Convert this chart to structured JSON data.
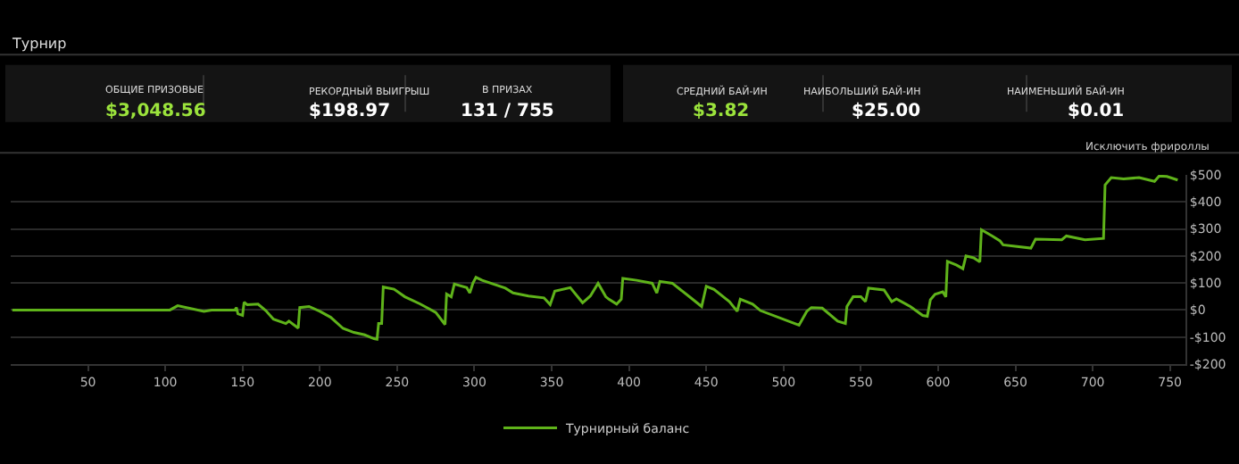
{
  "chart_data": [
    {
      "type": "other",
      "title": "Турнир",
      "annotations": [
        "ОБЩИЕ ПРИЗОВЫЕ",
        "$3,048.56",
        "РЕКОРДНЫЙ ВЫИГРЫШ",
        "$198.97",
        "В ПРИЗАХ",
        "131 / 755",
        "СРЕДНИЙ БАЙ-ИН",
        "$3.82",
        "НАИБОЛЬШИЙ БАЙ-ИН",
        "$25.00",
        "НАИМЕНЬШИЙ БАЙ-ИН",
        "$0.01",
        "Исключить фрироллы"
      ]
    },
    {
      "type": "line",
      "xlim": [
        0,
        760
      ],
      "ylim": [
        -200,
        500
      ],
      "xticks": [
        50,
        100,
        150,
        200,
        250,
        300,
        350,
        400,
        450,
        500,
        550,
        600,
        650,
        700,
        750
      ],
      "yticks": [
        {
          "value": -200,
          "label": "-$200"
        },
        {
          "value": -100,
          "label": "-$100"
        },
        {
          "value": 0,
          "label": "$0"
        },
        {
          "value": 100,
          "label": "$100"
        },
        {
          "value": 200,
          "label": "$200"
        },
        {
          "value": 300,
          "label": "$300"
        },
        {
          "value": 400,
          "label": "$400"
        },
        {
          "value": 500,
          "label": "$500"
        }
      ],
      "grid": "y",
      "legend": "bottom",
      "line_style": "solid",
      "series": [
        {
          "name": "Турнирный баланс",
          "color": "#5fb31a",
          "x": [
            1,
            103,
            108,
            125,
            130,
            145,
            146,
            147,
            150,
            151,
            153,
            160,
            165,
            170,
            178,
            180,
            186,
            187,
            193,
            200,
            207,
            215,
            222,
            229,
            235,
            237,
            238,
            240,
            241,
            248,
            255,
            265,
            275,
            281,
            282,
            285,
            287,
            295,
            297,
            299,
            301,
            305,
            320,
            325,
            335,
            345,
            349,
            352,
            362,
            370,
            375,
            380,
            385,
            387,
            392,
            395,
            396,
            405,
            415,
            418,
            420,
            428,
            440,
            447,
            450,
            455,
            465,
            470,
            472,
            480,
            485,
            510,
            515,
            518,
            525,
            535,
            540,
            541,
            545,
            550,
            553,
            555,
            565,
            570,
            573,
            582,
            590,
            593,
            595,
            598,
            603,
            605,
            606,
            612,
            616,
            618,
            623,
            627,
            628,
            635,
            640,
            642,
            660,
            663,
            680,
            683,
            695,
            707,
            708,
            712,
            720,
            730,
            740,
            743,
            748,
            755
          ],
          "values": [
            0,
            0,
            16,
            -5,
            0,
            0,
            9,
            -14,
            -20,
            29,
            20,
            22,
            -2,
            -34,
            -50,
            -41,
            -67,
            9,
            13,
            -5,
            -27,
            -68,
            -83,
            -92,
            -106,
            -108,
            -50,
            -50,
            85,
            77,
            49,
            22,
            -9,
            -54,
            59,
            49,
            96,
            83,
            63,
            99,
            121,
            110,
            81,
            63,
            52,
            45,
            20,
            70,
            83,
            27,
            52,
            99,
            49,
            40,
            22,
            40,
            117,
            110,
            99,
            63,
            106,
            99,
            45,
            13,
            88,
            76,
            31,
            -5,
            40,
            22,
            -2,
            -56,
            -5,
            9,
            7,
            -41,
            -50,
            13,
            49,
            49,
            31,
            81,
            74,
            31,
            41,
            13,
            -20,
            -23,
            38,
            58,
            67,
            49,
            180,
            166,
            153,
            200,
            193,
            178,
            297,
            274,
            256,
            241,
            229,
            262,
            260,
            274,
            260,
            265,
            463,
            490,
            485,
            490,
            476,
            496,
            494,
            481
          ]
        }
      ]
    }
  ]
}
